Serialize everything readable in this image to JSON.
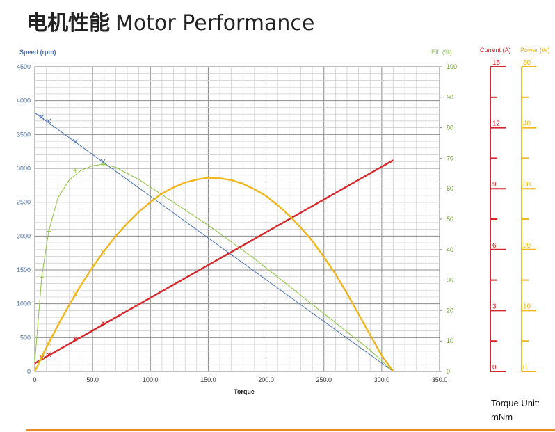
{
  "title": {
    "cn": "电机性能",
    "en": "Motor Performance"
  },
  "unit_note": {
    "line1": "Torque Unit:",
    "line2": "mNm"
  },
  "chart_data": {
    "type": "line",
    "xlabel": "Torque",
    "x_ticks": [
      "0",
      "50.0",
      "100.0",
      "150.0",
      "200.0",
      "250.0",
      "300.0",
      "350.0"
    ],
    "xlim": [
      0,
      350
    ],
    "left_axis": {
      "label": "Speed (rpm)",
      "ylim": [
        0,
        4500
      ],
      "ticks": [
        "0",
        "500",
        "1000",
        "1500",
        "2000",
        "2500",
        "3000",
        "3500",
        "4000",
        "4500"
      ],
      "color": "#4a72b2"
    },
    "right_axis": {
      "label": "Eff. (%)",
      "ylim": [
        0,
        100
      ],
      "ticks": [
        "0",
        "10",
        "20",
        "30",
        "40",
        "50",
        "60",
        "70",
        "80",
        "90",
        "100"
      ],
      "color": "#8ec63f"
    },
    "current_axis": {
      "label": "Current (A)",
      "ylim": [
        0,
        15
      ],
      "ticks": [
        "0",
        "3",
        "6",
        "9",
        "12",
        "15"
      ],
      "color": "#d6262b"
    },
    "power_axis": {
      "label": "Power (W)",
      "ylim": [
        0,
        50
      ],
      "ticks": [
        "0",
        "10",
        "20",
        "30",
        "40",
        "50"
      ],
      "color": "#f2b51b"
    },
    "series": [
      {
        "name": "Speed",
        "axis": "speed",
        "color": "#4a72b2",
        "x": [
          0,
          310
        ],
        "y": [
          3820,
          0
        ],
        "markers": [
          [
            6,
            3760
          ],
          [
            12,
            3700
          ],
          [
            35,
            3400
          ],
          [
            59,
            3100
          ]
        ]
      },
      {
        "name": "Eff.",
        "axis": "eff",
        "color": "#8ec63f",
        "x": [
          0,
          3,
          6,
          12,
          20,
          30,
          40,
          50,
          59,
          70,
          90,
          110,
          130,
          150,
          170,
          190,
          210,
          230,
          250,
          270,
          290,
          300,
          310
        ],
        "y": [
          3,
          17,
          31,
          46,
          57,
          63,
          66,
          67.5,
          68,
          67,
          63,
          58,
          53,
          48,
          42.5,
          37,
          31,
          25,
          19,
          13,
          7,
          3.5,
          0
        ],
        "markers": [
          [
            6,
            31
          ],
          [
            12,
            46
          ],
          [
            35,
            66
          ],
          [
            59,
            68
          ]
        ]
      },
      {
        "name": "Current",
        "axis": "current",
        "color": "#d6262b",
        "x": [
          0,
          310
        ],
        "y": [
          0.4,
          10.4
        ],
        "markers": [
          [
            6,
            0.67
          ],
          [
            12,
            0.83
          ],
          [
            35,
            1.6
          ],
          [
            59,
            2.4
          ]
        ]
      },
      {
        "name": "Power",
        "axis": "power",
        "color": "#f2b51b",
        "x": [
          0,
          10,
          20,
          30,
          40,
          50,
          60,
          70,
          80,
          90,
          100,
          110,
          120,
          130,
          140,
          150,
          160,
          170,
          180,
          190,
          200,
          210,
          220,
          230,
          240,
          250,
          260,
          270,
          280,
          290,
          300,
          310
        ],
        "y": [
          0,
          3.9,
          7.6,
          11.0,
          14.2,
          17.1,
          19.8,
          22.2,
          24.3,
          26.2,
          27.8,
          29.2,
          30.2,
          31.0,
          31.5,
          31.8,
          31.7,
          31.4,
          30.8,
          29.9,
          28.8,
          27.3,
          25.6,
          23.6,
          21.4,
          18.8,
          16.0,
          12.8,
          9.4,
          6.0,
          2.6,
          0
        ],
        "markers": [
          [
            6,
            2.4
          ],
          [
            12,
            4.6
          ],
          [
            35,
            12.7
          ],
          [
            59,
            19.6
          ]
        ]
      }
    ],
    "grid": true,
    "legend": "none"
  }
}
